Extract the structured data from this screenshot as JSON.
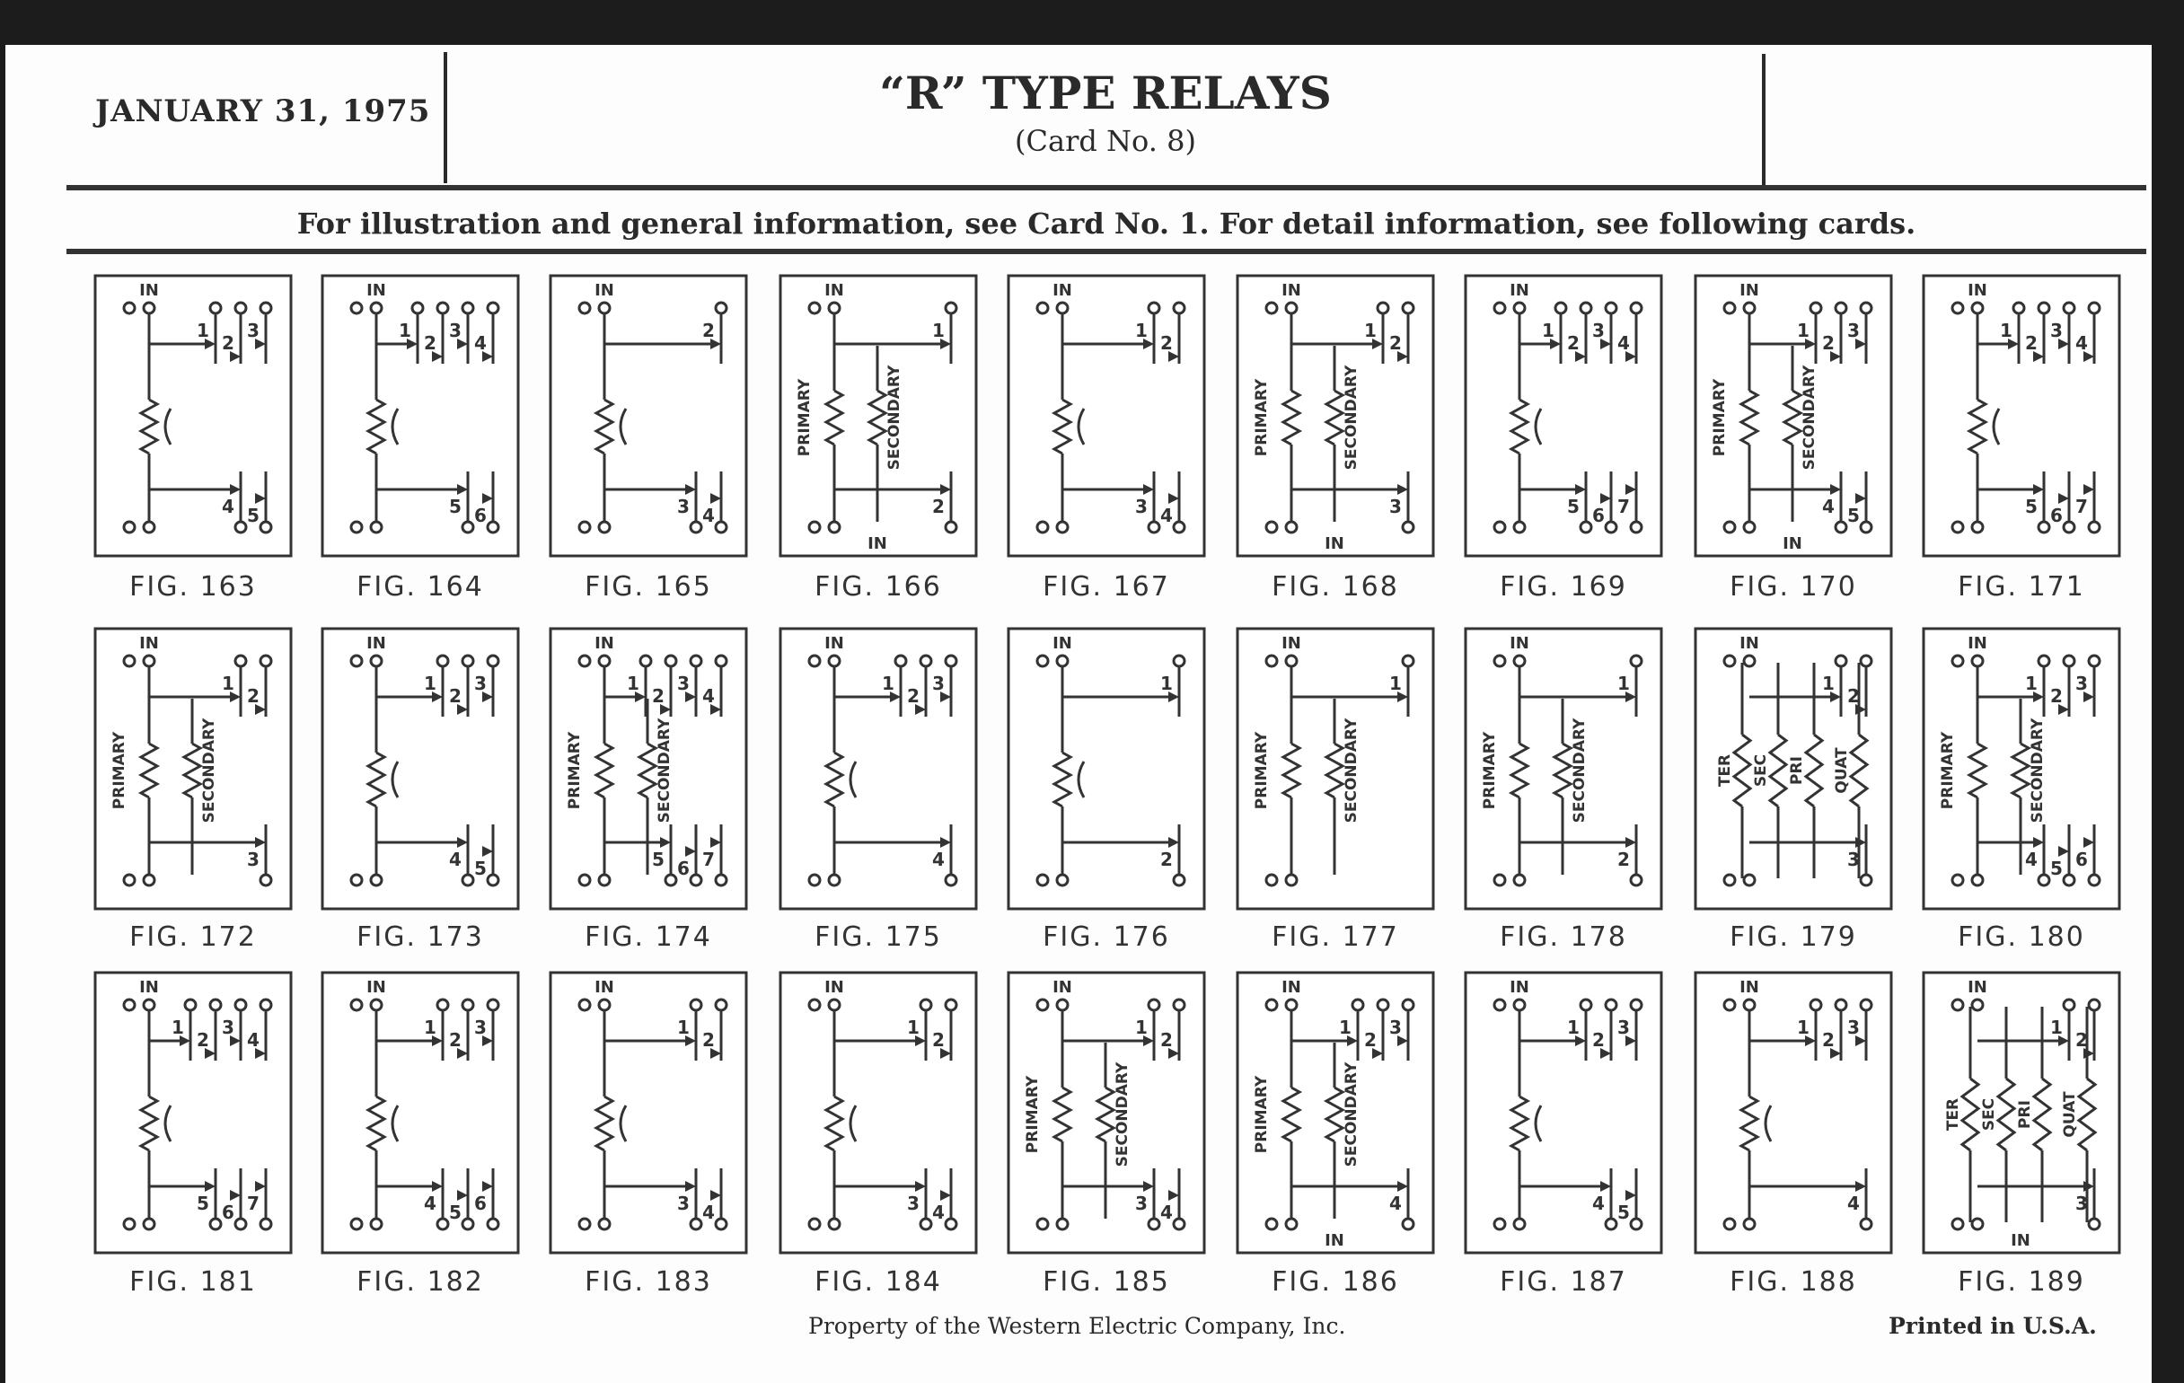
{
  "header": {
    "date": "JANUARY 31, 1975",
    "title": "“R” TYPE RELAYS",
    "subtitle": "(Card No. 8)",
    "info": "For illustration and general information, see Card No. 1. For detail information, see following cards."
  },
  "footer": {
    "property": "Property of the Western Electric Company, Inc.",
    "printed": "Printed in U.S.A."
  },
  "in_label": "IN",
  "figures": [
    {
      "label": "FIG. 163",
      "top": [
        "1",
        "2",
        "3"
      ],
      "bottom": [
        "4",
        "5"
      ],
      "coils": [],
      "bottom_in": false
    },
    {
      "label": "FIG. 164",
      "top": [
        "1",
        "2",
        "3",
        "4"
      ],
      "bottom": [
        "5",
        "6"
      ],
      "coils": [],
      "bottom_in": false
    },
    {
      "label": "FIG. 165",
      "top": [
        "2"
      ],
      "bottom": [
        "3",
        "4"
      ],
      "coils": [],
      "bottom_in": false
    },
    {
      "label": "FIG. 166",
      "top": [
        "1"
      ],
      "bottom": [
        "2"
      ],
      "coils": [
        "PRIMARY",
        "SECONDARY"
      ],
      "bottom_in": true
    },
    {
      "label": "FIG. 167",
      "top": [
        "1",
        "2"
      ],
      "bottom": [
        "3",
        "4"
      ],
      "coils": [],
      "bottom_in": false
    },
    {
      "label": "FIG. 168",
      "top": [
        "1",
        "2"
      ],
      "bottom": [
        "3"
      ],
      "coils": [
        "PRIMARY",
        "SECONDARY"
      ],
      "bottom_in": true
    },
    {
      "label": "FIG. 169",
      "top": [
        "1",
        "2",
        "3",
        "4"
      ],
      "bottom": [
        "5",
        "6",
        "7"
      ],
      "coils": [],
      "bottom_in": false
    },
    {
      "label": "FIG. 170",
      "top": [
        "1",
        "2",
        "3"
      ],
      "bottom": [
        "4",
        "5"
      ],
      "coils": [
        "PRIMARY",
        "SECONDARY"
      ],
      "bottom_in": true
    },
    {
      "label": "FIG. 171",
      "top": [
        "1",
        "2",
        "3",
        "4"
      ],
      "bottom": [
        "5",
        "6",
        "7"
      ],
      "coils": [],
      "bottom_in": false
    },
    {
      "label": "FIG. 172",
      "top": [
        "1",
        "2"
      ],
      "bottom": [
        "3"
      ],
      "coils": [
        "PRIMARY",
        "SECONDARY"
      ],
      "bottom_in": false
    },
    {
      "label": "FIG. 173",
      "top": [
        "1",
        "2",
        "3"
      ],
      "bottom": [
        "4",
        "5"
      ],
      "coils": [],
      "bottom_in": false
    },
    {
      "label": "FIG. 174",
      "top": [
        "1",
        "2",
        "3",
        "4"
      ],
      "bottom": [
        "5",
        "6",
        "7"
      ],
      "coils": [
        "PRIMARY",
        "SECONDARY"
      ],
      "bottom_in": false
    },
    {
      "label": "FIG. 175",
      "top": [
        "1",
        "2",
        "3"
      ],
      "bottom": [
        "4"
      ],
      "coils": [],
      "bottom_in": false
    },
    {
      "label": "FIG. 176",
      "top": [
        "1"
      ],
      "bottom": [
        "2"
      ],
      "coils": [],
      "bottom_in": false
    },
    {
      "label": "FIG. 177",
      "top": [
        "1"
      ],
      "bottom": [],
      "coils": [
        "PRIMARY",
        "SECONDARY"
      ],
      "bottom_in": false
    },
    {
      "label": "FIG. 178",
      "top": [
        "1"
      ],
      "bottom": [
        "2"
      ],
      "coils": [
        "PRIMARY",
        "SECONDARY"
      ],
      "bottom_in": false
    },
    {
      "label": "FIG. 179",
      "top": [
        "1",
        "2"
      ],
      "bottom": [
        "3"
      ],
      "coils": [
        "TER",
        "SEC",
        "PRI",
        "QUAT"
      ],
      "bottom_in": false
    },
    {
      "label": "FIG. 180",
      "top": [
        "1",
        "2",
        "3"
      ],
      "bottom": [
        "4",
        "5",
        "6"
      ],
      "coils": [
        "PRIMARY",
        "SECONDARY"
      ],
      "bottom_in": false
    },
    {
      "label": "FIG. 181",
      "top": [
        "1",
        "2",
        "3",
        "4"
      ],
      "bottom": [
        "5",
        "6",
        "7"
      ],
      "coils": [],
      "bottom_in": false
    },
    {
      "label": "FIG. 182",
      "top": [
        "1",
        "2",
        "3"
      ],
      "bottom": [
        "4",
        "5",
        "6"
      ],
      "coils": [],
      "bottom_in": false
    },
    {
      "label": "FIG. 183",
      "top": [
        "1",
        "2"
      ],
      "bottom": [
        "3",
        "4"
      ],
      "coils": [],
      "bottom_in": false
    },
    {
      "label": "FIG. 184",
      "top": [
        "1",
        "2"
      ],
      "bottom": [
        "3",
        "4"
      ],
      "coils": [],
      "bottom_in": false
    },
    {
      "label": "FIG. 185",
      "top": [
        "1",
        "2"
      ],
      "bottom": [
        "3",
        "4"
      ],
      "coils": [
        "PRIMARY",
        "SECONDARY"
      ],
      "bottom_in": false
    },
    {
      "label": "FIG. 186",
      "top": [
        "1",
        "2",
        "3"
      ],
      "bottom": [
        "4"
      ],
      "coils": [
        "PRIMARY",
        "SECONDARY"
      ],
      "bottom_in": true
    },
    {
      "label": "FIG. 187",
      "top": [
        "1",
        "2",
        "3"
      ],
      "bottom": [
        "4",
        "5"
      ],
      "coils": [],
      "bottom_in": false
    },
    {
      "label": "FIG. 188",
      "top": [
        "1",
        "2",
        "3"
      ],
      "bottom": [
        "4"
      ],
      "coils": [],
      "bottom_in": false
    },
    {
      "label": "FIG. 189",
      "top": [
        "1",
        "2"
      ],
      "bottom": [
        "3"
      ],
      "coils": [
        "TER",
        "SEC",
        "PRI",
        "QUAT"
      ],
      "bottom_in": true
    }
  ]
}
